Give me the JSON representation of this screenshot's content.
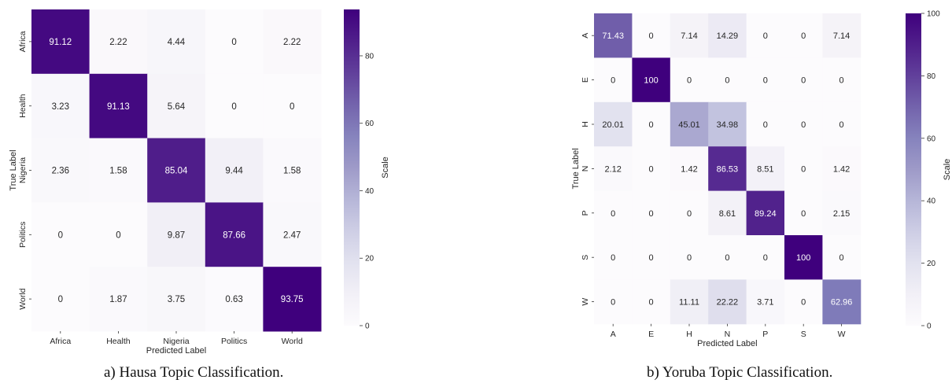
{
  "chart_data": [
    {
      "type": "heatmap",
      "xlabel": "Predicted Label",
      "ylabel": "True Label",
      "x_categories": [
        "Africa",
        "Health",
        "Nigeria",
        "Politics",
        "World"
      ],
      "y_categories": [
        "Africa",
        "Health",
        "Nigeria",
        "Politics",
        "World"
      ],
      "values": [
        [
          91.12,
          2.22,
          4.44,
          0,
          2.22
        ],
        [
          3.23,
          91.13,
          5.64,
          0,
          0
        ],
        [
          2.36,
          1.58,
          85.04,
          9.44,
          1.58
        ],
        [
          0,
          0,
          9.87,
          87.66,
          2.47
        ],
        [
          0,
          1.87,
          3.75,
          0.63,
          93.75
        ]
      ],
      "colorbar": {
        "label": "Scale",
        "min": 0,
        "max": 93.75,
        "ticks": [
          0,
          20,
          40,
          60,
          80
        ]
      },
      "colormap": "Purples"
    },
    {
      "type": "heatmap",
      "xlabel": "Predicted Label",
      "ylabel": "True Label",
      "x_categories": [
        "A",
        "E",
        "H",
        "N",
        "P",
        "S",
        "W"
      ],
      "y_categories": [
        "A",
        "E",
        "H",
        "N",
        "P",
        "S",
        "W"
      ],
      "values": [
        [
          71.43,
          0,
          7.14,
          14.29,
          0,
          0,
          7.14
        ],
        [
          0,
          100,
          0,
          0,
          0,
          0,
          0
        ],
        [
          20.01,
          0,
          45.01,
          34.98,
          0,
          0,
          0
        ],
        [
          2.12,
          0,
          1.42,
          86.53,
          8.51,
          0,
          1.42
        ],
        [
          0,
          0,
          0,
          8.61,
          89.24,
          0,
          2.15
        ],
        [
          0,
          0,
          0,
          0,
          0,
          100,
          0
        ],
        [
          0,
          0,
          11.11,
          22.22,
          3.71,
          0,
          62.96
        ]
      ],
      "colorbar": {
        "label": "Scale",
        "min": 0,
        "max": 100,
        "ticks": [
          0,
          20,
          40,
          60,
          80,
          100
        ]
      },
      "colormap": "Purples"
    }
  ],
  "captions": {
    "a": "a) Hausa Topic Classification.",
    "b": "b) Yoruba Topic Classification."
  }
}
